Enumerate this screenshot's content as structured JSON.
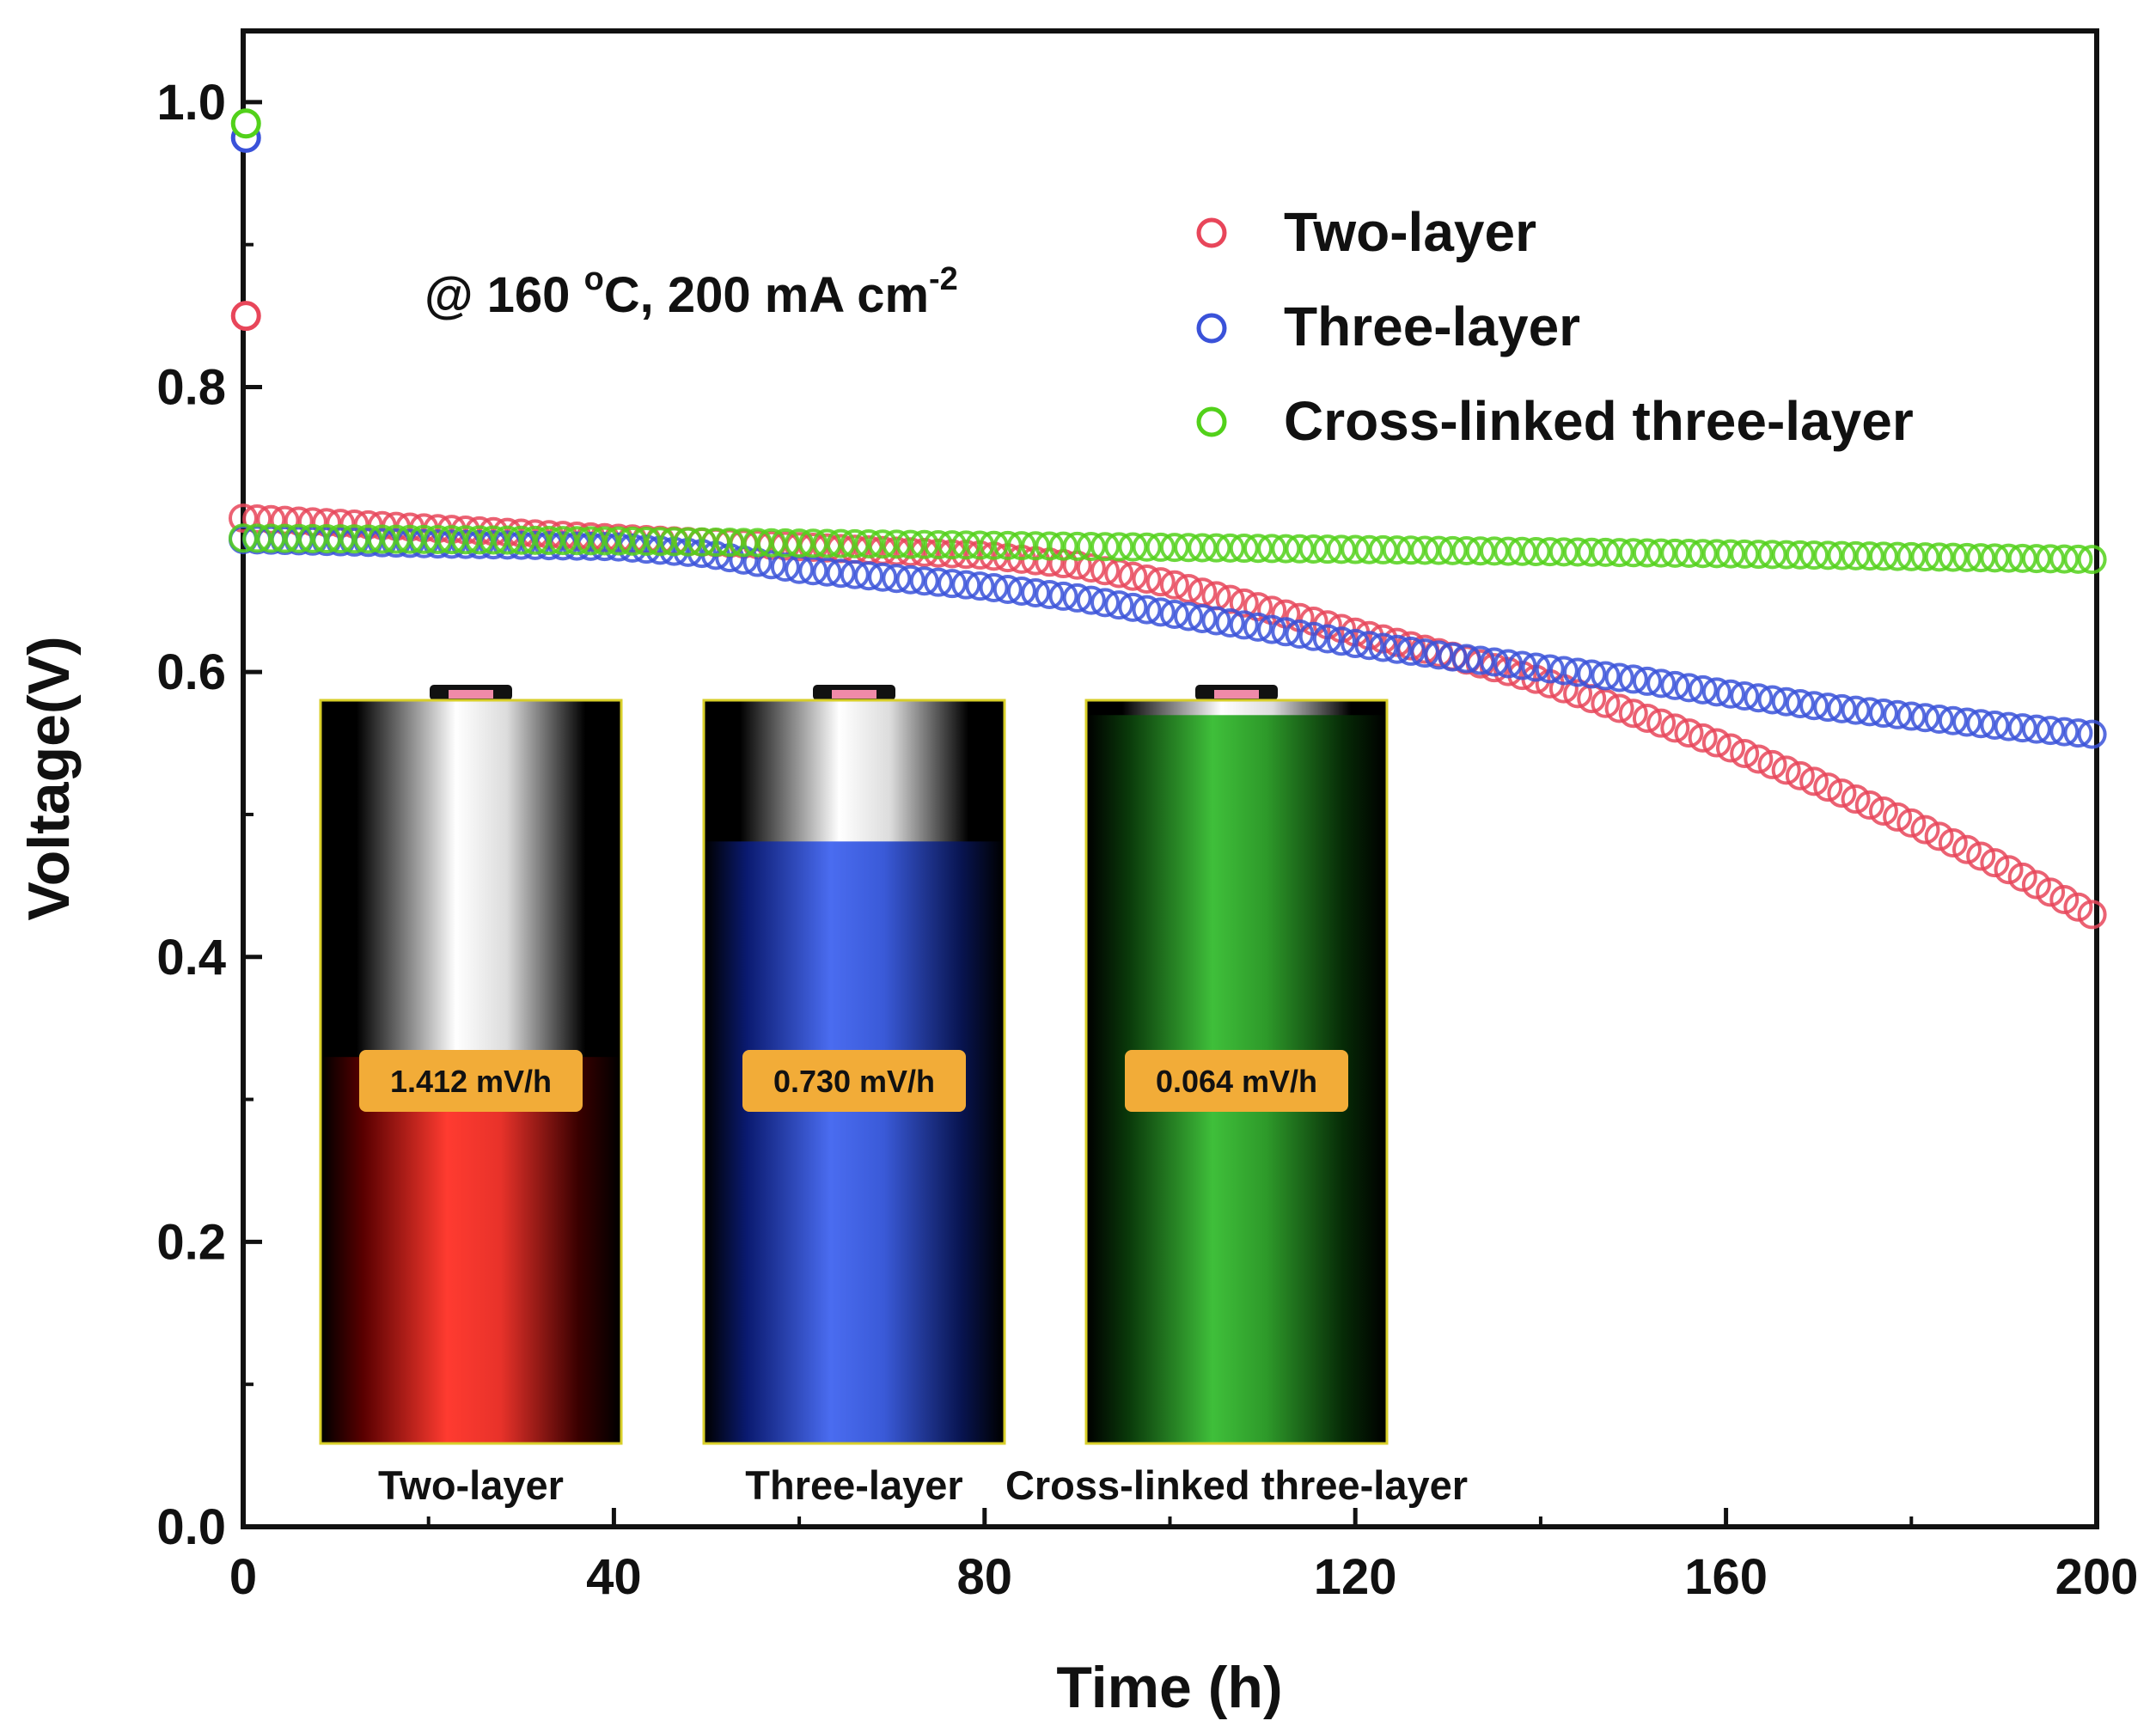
{
  "chart_data": {
    "type": "scatter",
    "title": "",
    "xlabel": "Time (h)",
    "ylabel": "Voltage(V)",
    "xlim": [
      0,
      200
    ],
    "ylim": [
      0,
      1.05
    ],
    "xticks": [
      "0",
      "40",
      "80",
      "120",
      "160",
      "200"
    ],
    "yticks": [
      "0.0",
      "0.2",
      "0.4",
      "0.6",
      "0.8",
      "1.0"
    ],
    "annotation": {
      "prefix": "@ 160 ",
      "degree": "o",
      "unit_and_current": "C, 200 mA cm",
      "superscript": "-2"
    },
    "legend_position": "top-right",
    "series": [
      {
        "name": "Two-layer",
        "color": "#e8465a",
        "initial": [
          [
            0.3,
            0.85
          ]
        ],
        "x": [
          0,
          20,
          40,
          60,
          80,
          90,
          100,
          110,
          120,
          130,
          140,
          150,
          160,
          170,
          180,
          190,
          200
        ],
        "y": [
          0.708,
          0.701,
          0.694,
          0.688,
          0.682,
          0.675,
          0.662,
          0.645,
          0.628,
          0.612,
          0.594,
          0.571,
          0.548,
          0.522,
          0.494,
          0.463,
          0.428
        ]
      },
      {
        "name": "Three-layer",
        "color": "#3a52d9",
        "initial": [
          [
            0.3,
            0.975
          ]
        ],
        "x": [
          0,
          20,
          40,
          50,
          60,
          70,
          80,
          90,
          100,
          110,
          120,
          130,
          140,
          150,
          160,
          170,
          180,
          190,
          200
        ],
        "y": [
          0.693,
          0.69,
          0.688,
          0.683,
          0.672,
          0.666,
          0.66,
          0.652,
          0.641,
          0.631,
          0.62,
          0.611,
          0.603,
          0.595,
          0.585,
          0.576,
          0.569,
          0.562,
          0.556
        ]
      },
      {
        "name": "Cross-linked three-layer",
        "color": "#52d11a",
        "initial": [
          [
            0.3,
            0.985
          ]
        ],
        "x": [
          0,
          40,
          80,
          120,
          160,
          200
        ],
        "y": [
          0.694,
          0.692,
          0.689,
          0.686,
          0.683,
          0.679
        ]
      }
    ],
    "batteries": [
      {
        "caption": "Two-layer",
        "rate": "1.412 mV/h",
        "fill_fraction": 0.52,
        "color": "#e8322a"
      },
      {
        "caption": "Three-layer",
        "rate": "0.730 mV/h",
        "fill_fraction": 0.81,
        "color": "#3a5ad8"
      },
      {
        "caption": "Cross-linked three-layer",
        "rate": "0.064 mV/h",
        "fill_fraction": 0.98,
        "color": "#3fa83a"
      }
    ]
  }
}
